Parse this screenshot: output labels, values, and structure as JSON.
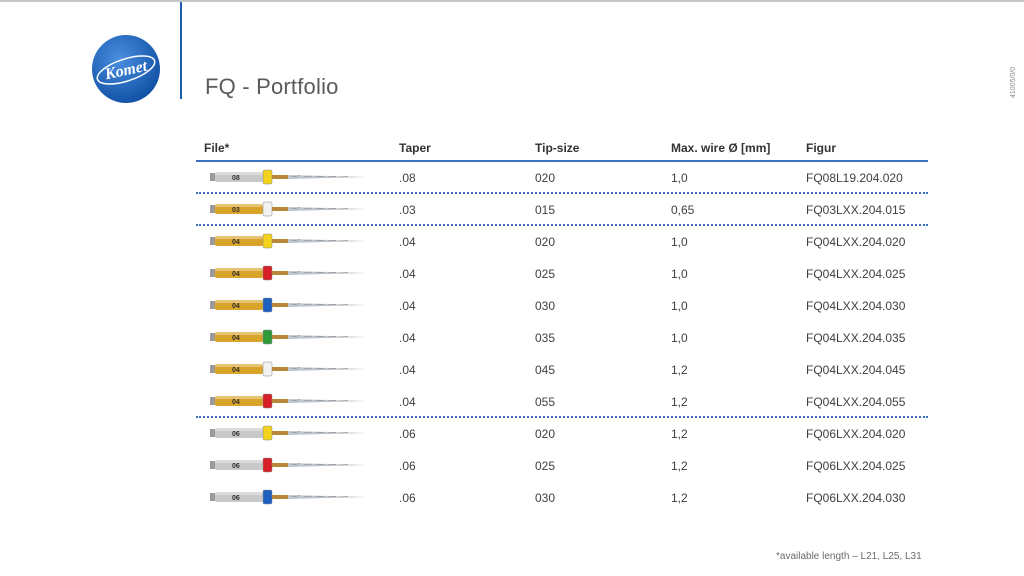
{
  "header": {
    "title": "FQ - Portfolio",
    "doc_code": "41005/0/0",
    "logo_text": "Komet",
    "colors": {
      "accent": "#1f5fb0",
      "logo_blue": "#1a5fb4"
    }
  },
  "table": {
    "columns": [
      "File*",
      "Taper",
      "Tip-size",
      "Max. wire Ø [mm]",
      "Figur"
    ],
    "rows": [
      {
        "taper": ".08",
        "tip": "020",
        "wire": "1,0",
        "figur": "FQ08L19.204.020",
        "ring": "#f2d21a",
        "shank": "#c9c9c9",
        "label": "08"
      },
      {
        "taper": ".03",
        "tip": "015",
        "wire": "0,65",
        "figur": "FQ03LXX.204.015",
        "ring": "#f2f2f2",
        "shank": "#d9a42a",
        "label": "03"
      },
      {
        "taper": ".04",
        "tip": "020",
        "wire": "1,0",
        "figur": "FQ04LXX.204.020",
        "ring": "#f2d21a",
        "shank": "#d9a42a",
        "label": "04"
      },
      {
        "taper": ".04",
        "tip": "025",
        "wire": "1,0",
        "figur": "FQ04LXX.204.025",
        "ring": "#d61f26",
        "shank": "#d9a42a",
        "label": "04"
      },
      {
        "taper": ".04",
        "tip": "030",
        "wire": "1,0",
        "figur": "FQ04LXX.204.030",
        "ring": "#1f5fc0",
        "shank": "#d9a42a",
        "label": "04"
      },
      {
        "taper": ".04",
        "tip": "035",
        "wire": "1,0",
        "figur": "FQ04LXX.204.035",
        "ring": "#2e9a3a",
        "shank": "#d9a42a",
        "label": "04"
      },
      {
        "taper": ".04",
        "tip": "045",
        "wire": "1,2",
        "figur": "FQ04LXX.204.045",
        "ring": "#f2f2f2",
        "shank": "#d9a42a",
        "label": "04"
      },
      {
        "taper": ".04",
        "tip": "055",
        "wire": "1,2",
        "figur": "FQ04LXX.204.055",
        "ring": "#d61f26",
        "shank": "#d9a42a",
        "label": "04"
      },
      {
        "taper": ".06",
        "tip": "020",
        "wire": "1,2",
        "figur": "FQ06LXX.204.020",
        "ring": "#f2d21a",
        "shank": "#c9c9c9",
        "label": "06"
      },
      {
        "taper": ".06",
        "tip": "025",
        "wire": "1,2",
        "figur": "FQ06LXX.204.025",
        "ring": "#d61f26",
        "shank": "#c9c9c9",
        "label": "06"
      },
      {
        "taper": ".06",
        "tip": "030",
        "wire": "1,2",
        "figur": "FQ06LXX.204.030",
        "ring": "#1f5fc0",
        "shank": "#c9c9c9",
        "label": "06"
      }
    ]
  },
  "footnote": "*available length – L21, L25, L31"
}
